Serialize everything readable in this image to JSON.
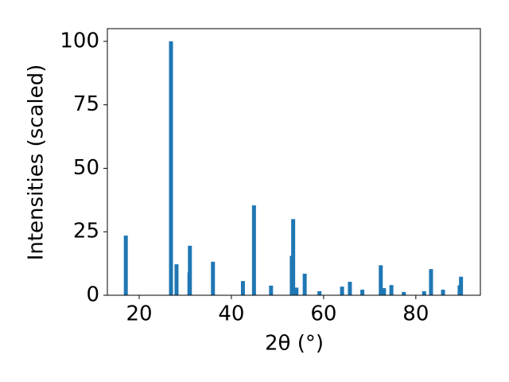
{
  "chart_data": {
    "type": "bar",
    "x_label": "2θ (°)",
    "y_label": "Intensities (scaled)",
    "color": "#1f77b4",
    "x": [
      17.1,
      26.9,
      28.1,
      30.9,
      31.0,
      36.0,
      42.5,
      44.9,
      48.6,
      53.1,
      53.4,
      54.1,
      55.9,
      59.1,
      64.0,
      65.7,
      68.4,
      72.4,
      73.1,
      74.7,
      77.4,
      81.8,
      83.3,
      85.9,
      89.5,
      89.8
    ],
    "values": [
      23.5,
      100,
      12.2,
      9,
      19.5,
      13.2,
      5.6,
      35.4,
      3.8,
      15.5,
      30,
      3,
      8.5,
      1.6,
      3.4,
      5.3,
      2.2,
      11.8,
      2.8,
      4.0,
      1.3,
      1.6,
      10.3,
      2.2,
      3.9,
      7.3
    ],
    "xlim": [
      13.1,
      94
    ],
    "xticks": [
      20,
      40,
      60,
      80
    ],
    "ylim": [
      0,
      105
    ],
    "yticks": [
      0,
      25,
      50,
      75,
      100
    ]
  }
}
